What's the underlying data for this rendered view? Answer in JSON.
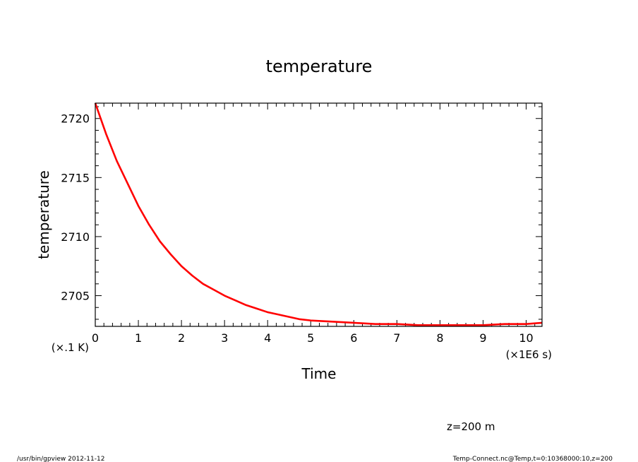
{
  "chart_data": {
    "type": "line",
    "title": "temperature",
    "xlabel": "Time",
    "ylabel": "temperature",
    "x_unit_label": "(×1E6 s)",
    "y_unit_label": "(×.1 K)",
    "xlim": [
      0,
      10.368
    ],
    "ylim": [
      2702.4,
      2721.3
    ],
    "x_ticks": [
      "0",
      "1",
      "2",
      "3",
      "4",
      "5",
      "6",
      "7",
      "8",
      "9",
      "10"
    ],
    "y_ticks": [
      "2705",
      "2710",
      "2715",
      "2720"
    ],
    "grid": false,
    "legend": "none",
    "series": [
      {
        "color": "#ff0000",
        "x": [
          0,
          0.25,
          0.5,
          0.75,
          1,
          1.25,
          1.5,
          1.75,
          2,
          2.25,
          2.5,
          2.75,
          3,
          3.25,
          3.5,
          3.75,
          4,
          4.25,
          4.5,
          4.75,
          5,
          5.5,
          6,
          6.5,
          7,
          7.5,
          8,
          8.5,
          9,
          9.5,
          10,
          10.368
        ],
        "y": [
          2721.3,
          2718.7,
          2716.4,
          2714.5,
          2712.6,
          2711.0,
          2709.6,
          2708.5,
          2707.5,
          2706.7,
          2706.0,
          2705.5,
          2705.0,
          2704.6,
          2704.2,
          2703.9,
          2703.6,
          2703.4,
          2703.2,
          2703.0,
          2702.9,
          2702.8,
          2702.7,
          2702.6,
          2702.6,
          2702.5,
          2702.5,
          2702.5,
          2702.5,
          2702.6,
          2702.6,
          2702.7
        ]
      }
    ]
  },
  "annotation": "z=200 m",
  "footer": {
    "left": "/usr/bin/gpview   2012-11-12",
    "right": "Temp-Connect.nc@Temp,t=0:10368000:10,z=200"
  }
}
